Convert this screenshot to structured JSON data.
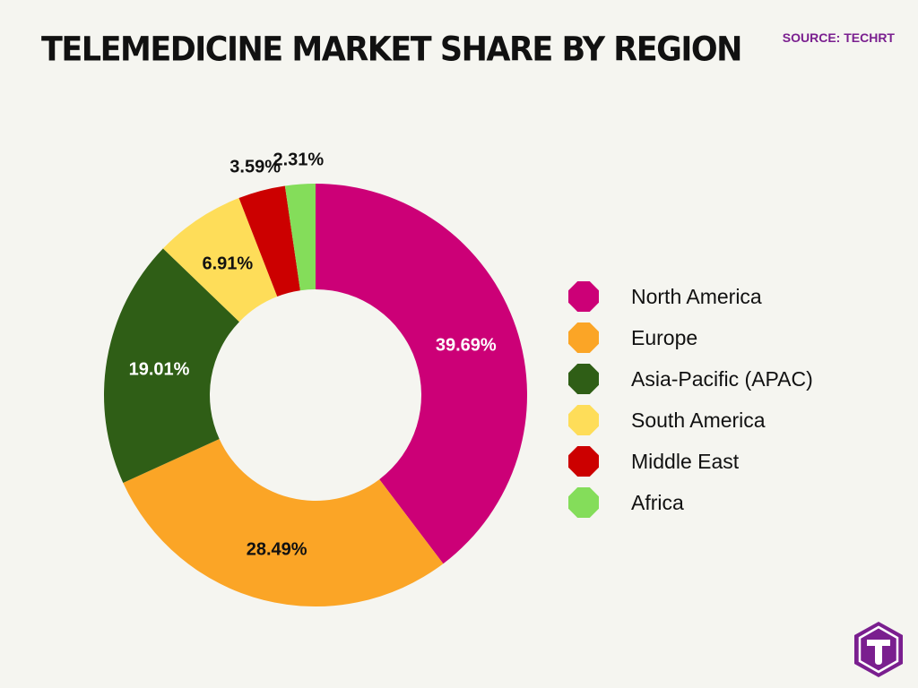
{
  "title": "TELEMEDICINE MARKET SHARE BY REGION",
  "source": "SOURCE: TECHRT",
  "chart_data": {
    "type": "pie",
    "donut": true,
    "title": "TELEMEDICINE MARKET SHARE BY REGION",
    "categories": [
      "North America",
      "Europe",
      "Asia-Pacific (APAC)",
      "South America",
      "Middle East",
      "Africa"
    ],
    "values": [
      39.69,
      28.49,
      19.01,
      6.91,
      3.59,
      2.31
    ],
    "labels": [
      "39.69%",
      "28.49%",
      "19.01%",
      "6.91%",
      "3.59%",
      "2.31%"
    ],
    "colors": [
      "#cc0077",
      "#fba526",
      "#2f5e16",
      "#fedd59",
      "#cc0000",
      "#84dd5a"
    ],
    "label_colors": [
      "#ffffff",
      "#111111",
      "#ffffff",
      "#111111",
      "#111111",
      "#111111"
    ],
    "legend": "right"
  },
  "logo": {
    "icon": "techrt-logo-icon",
    "color": "#7a1f8f"
  }
}
